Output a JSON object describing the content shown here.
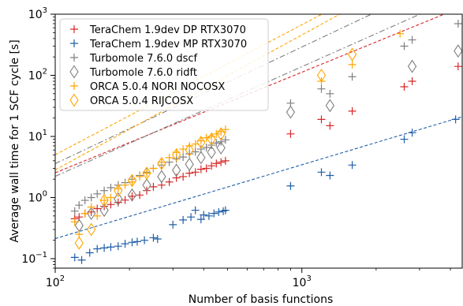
{
  "chart_data": {
    "type": "scatter",
    "xlabel": "Number of basis functions",
    "ylabel": "Average wall time for 1 SCF cycle [s]",
    "xscale": "log",
    "yscale": "log",
    "xlim": [
      100,
      4500
    ],
    "ylim": [
      0.07,
      1000
    ],
    "xticks": [
      {
        "value": 100,
        "base": "10",
        "exp": "2"
      },
      {
        "value": 1000,
        "base": "10",
        "exp": "3"
      }
    ],
    "yticks": [
      {
        "value": 0.1,
        "base": "10",
        "exp": "−1"
      },
      {
        "value": 1,
        "base": "10",
        "exp": "0"
      },
      {
        "value": 10,
        "base": "10",
        "exp": "1"
      },
      {
        "value": 100,
        "base": "10",
        "exp": "2"
      },
      {
        "value": 1000,
        "base": "10",
        "exp": "3"
      }
    ],
    "legend_position": "top-left",
    "series": [
      {
        "name": "TeraChem 1.9dev DP RTX3070",
        "color": "#d62728",
        "marker": "plus",
        "fit": {
          "a": 0.4045,
          "b": 1.646,
          "style": "dashed"
        },
        "x": [
          120,
          125,
          132,
          140,
          148,
          158,
          168,
          180,
          192,
          205,
          220,
          235,
          250,
          270,
          290,
          310,
          330,
          350,
          370,
          390,
          410,
          430,
          450,
          470,
          490,
          900,
          1200,
          1300,
          1600,
          2600,
          2800,
          4300
        ],
        "y": [
          0.45,
          0.48,
          0.55,
          0.58,
          0.66,
          0.72,
          0.77,
          0.83,
          0.91,
          1.05,
          1.1,
          1.3,
          1.5,
          1.6,
          1.8,
          2.1,
          2.2,
          2.5,
          2.6,
          2.9,
          3.0,
          3.3,
          3.6,
          3.8,
          4.0,
          11.0,
          19.0,
          15.0,
          26.0,
          65.0,
          80.0,
          140.0
        ]
      },
      {
        "name": "TeraChem 1.9dev MP RTX3070",
        "color": "#1f5fa8",
        "marker": "plus",
        "fit": {
          "a": -0.6716,
          "b": 1.208,
          "style": "dashed"
        },
        "x": [
          120,
          128,
          138,
          148,
          158,
          168,
          180,
          192,
          205,
          215,
          230,
          250,
          260,
          300,
          330,
          355,
          370,
          390,
          400,
          420,
          440,
          460,
          480,
          490,
          900,
          1200,
          1300,
          1600,
          2600,
          2800,
          4200
        ],
        "y": [
          0.105,
          0.095,
          0.125,
          0.145,
          0.15,
          0.155,
          0.16,
          0.175,
          0.185,
          0.19,
          0.2,
          0.22,
          0.21,
          0.36,
          0.43,
          0.48,
          0.62,
          0.44,
          0.52,
          0.5,
          0.55,
          0.58,
          0.6,
          0.62,
          1.55,
          2.6,
          2.3,
          3.4,
          9.0,
          11.5,
          19.0
        ]
      },
      {
        "name": "Turbomole 7.6.0 dscf",
        "color": "#7f7f7f",
        "marker": "plus",
        "fit": {
          "a": 0.5545,
          "b": 1.908,
          "style": "dashdot"
        },
        "x": [
          120,
          125,
          132,
          140,
          148,
          158,
          168,
          180,
          192,
          205,
          220,
          235,
          250,
          270,
          290,
          310,
          330,
          350,
          370,
          390,
          410,
          430,
          450,
          470,
          490,
          900,
          1200,
          1300,
          1600,
          2600,
          2800,
          4300
        ],
        "y": [
          0.6,
          0.75,
          0.9,
          1.0,
          1.15,
          1.3,
          1.45,
          1.6,
          1.75,
          2.0,
          2.3,
          2.6,
          3.0,
          3.4,
          3.8,
          4.3,
          4.6,
          5.2,
          5.6,
          6.2,
          6.6,
          7.2,
          7.8,
          8.2,
          8.8,
          35.0,
          60.0,
          50.0,
          95.0,
          300.0,
          380.0,
          700.0
        ]
      },
      {
        "name": "Turbomole 7.6.0 ridft",
        "color": "#7f7f7f",
        "marker": "diamond",
        "fit": {
          "a": 0.3475,
          "b": 1.794,
          "style": "dashdot"
        },
        "x": [
          125,
          140,
          158,
          180,
          205,
          235,
          270,
          310,
          350,
          390,
          430,
          470,
          900,
          1300,
          2800,
          4300
        ],
        "y": [
          0.35,
          0.55,
          0.62,
          0.95,
          1.1,
          1.6,
          2.2,
          2.8,
          3.5,
          4.5,
          5.5,
          6.5,
          25.0,
          32.0,
          140.0,
          250.0
        ]
      },
      {
        "name": "ORCA 5.0.4 NORI NOCOSX",
        "color": "#ffa500",
        "marker": "plus",
        "fit": {
          "a": 0.4525,
          "b": 2.208,
          "style": "dashed"
        },
        "x": [
          120,
          125,
          132,
          140,
          148,
          158,
          168,
          180,
          192,
          205,
          220,
          235,
          250,
          270,
          290,
          310,
          330,
          350,
          370,
          390,
          410,
          430,
          450,
          470,
          490,
          1200,
          1600,
          2500
        ],
        "y": [
          0.4,
          0.25,
          0.55,
          0.7,
          0.5,
          0.9,
          1.0,
          1.4,
          1.6,
          1.8,
          2.2,
          2.5,
          3.0,
          3.8,
          4.5,
          5.5,
          6.2,
          7.0,
          7.5,
          8.5,
          9.5,
          10.0,
          11.0,
          12.0,
          13.0,
          80.0,
          150.0,
          480.0
        ]
      },
      {
        "name": "ORCA 5.0.4 RIJCOSX",
        "color": "#ffa500",
        "marker": "diamond",
        "fit": {
          "a": 0.7,
          "b": 2.128,
          "style": "dashed"
        },
        "x": [
          125,
          140,
          158,
          180,
          205,
          235,
          270,
          310,
          350,
          390,
          430,
          470,
          1200,
          1600
        ],
        "y": [
          0.18,
          0.3,
          0.9,
          1.3,
          1.9,
          2.5,
          3.6,
          5.0,
          6.0,
          8.0,
          9.0,
          11.0,
          100.0,
          220.0
        ]
      }
    ]
  }
}
